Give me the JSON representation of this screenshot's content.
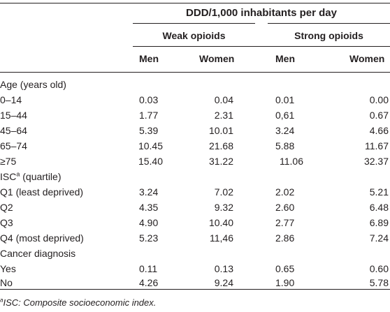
{
  "header": {
    "unit_label": "DDD/1,000 inhabitants per day",
    "groups": [
      "Weak opioids",
      "Strong opioids"
    ],
    "subcols": [
      "Men",
      "Women",
      "Men",
      "Women"
    ]
  },
  "sections": [
    {
      "title": "Age (years old)",
      "rows": [
        {
          "label": "0–14",
          "values": [
            "0.03",
            "0.04",
            "0.01",
            "0.00"
          ]
        },
        {
          "label": "15–44",
          "values": [
            "1.77",
            "2.31",
            "0,61",
            "0.67"
          ]
        },
        {
          "label": "45–64",
          "values": [
            "5.39",
            "10.01",
            "3.24",
            "4.66"
          ]
        },
        {
          "label": "65–74",
          "values": [
            "10.45",
            "21.68",
            "5.88",
            "11.67"
          ]
        },
        {
          "label": "≥75",
          "values": [
            "15.40",
            "31.22",
            "11.06",
            "32.37"
          ]
        }
      ]
    },
    {
      "title_main": "ISC",
      "title_sup": "a",
      "title_rest": " (quartile)",
      "rows": [
        {
          "label": "Q1 (least deprived)",
          "values": [
            "3.24",
            "7.02",
            "2.02",
            "5.21"
          ]
        },
        {
          "label": "Q2",
          "values": [
            "4.35",
            "9.32",
            "2.60",
            "6.48"
          ]
        },
        {
          "label": "Q3",
          "values": [
            "4.90",
            "10.40",
            "2.77",
            "6.89"
          ]
        },
        {
          "label": "Q4 (most deprived)",
          "values": [
            "5.23",
            "11,46",
            "2.86",
            "7.24"
          ]
        }
      ]
    },
    {
      "title": "Cancer diagnosis",
      "rows": [
        {
          "label": "Yes",
          "values": [
            "0.11",
            "0.13",
            "0.65",
            "0.60"
          ]
        },
        {
          "label": "No",
          "values": [
            "4.26",
            "9.24",
            "1.90",
            "5.78"
          ]
        }
      ]
    }
  ],
  "footnote": {
    "marker": "a",
    "text": "ISC: Composite socioeconomic index."
  }
}
